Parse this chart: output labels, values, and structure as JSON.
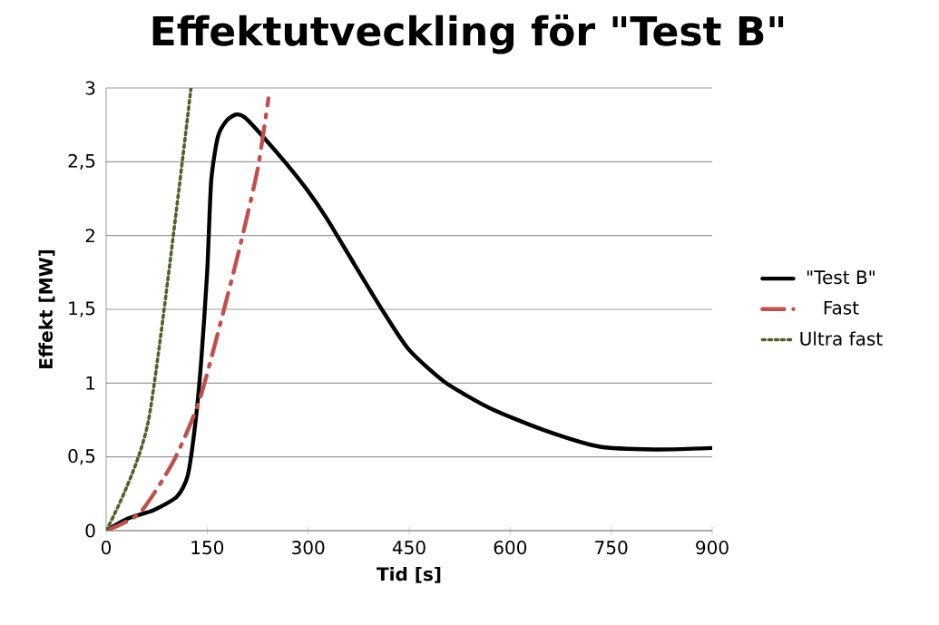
{
  "chart_data": {
    "type": "line",
    "title": "Effektutveckling för \"Test B\"",
    "xlabel": "Tid [s]",
    "ylabel": "Effekt [MW]",
    "xlim": [
      0,
      900
    ],
    "ylim": [
      0,
      3
    ],
    "xticks": [
      0,
      150,
      300,
      450,
      600,
      750,
      900
    ],
    "yticks": [
      0,
      {
        "value": 0.5,
        "label": "0,5"
      },
      1,
      {
        "value": 1.5,
        "label": "1,5"
      },
      2,
      {
        "value": 2.5,
        "label": "2,5"
      },
      3
    ],
    "grid": "y",
    "legend": "right",
    "series": [
      {
        "name": "\"Test B\"",
        "color": "#000000",
        "line_style": "solid",
        "x": [
          0,
          31,
          71,
          105,
          121,
          132,
          141,
          150,
          156,
          166,
          179,
          193,
          206,
          233,
          267,
          300,
          327,
          368,
          408,
          449,
          502,
          570,
          651,
          732,
          813,
          900
        ],
        "values": [
          0,
          0.08,
          0.14,
          0.23,
          0.37,
          0.71,
          1.14,
          1.75,
          2.37,
          2.67,
          2.78,
          2.82,
          2.8,
          2.67,
          2.49,
          2.3,
          2.12,
          1.81,
          1.51,
          1.23,
          1.01,
          0.83,
          0.68,
          0.57,
          0.55,
          0.56
        ]
      },
      {
        "name": "Fast",
        "color": "#c0504d",
        "line_style": "dashed",
        "x": [
          0,
          50,
          100,
          139,
          179,
          200,
          225,
          241
        ],
        "values": [
          0,
          0.12,
          0.47,
          0.89,
          1.57,
          1.95,
          2.45,
          2.93
        ]
      },
      {
        "name": "Ultra fast",
        "color": "#4f6228",
        "line_style": "dotted",
        "x": [
          0,
          63,
          126
        ],
        "values": [
          0,
          0.75,
          3
        ]
      }
    ]
  }
}
